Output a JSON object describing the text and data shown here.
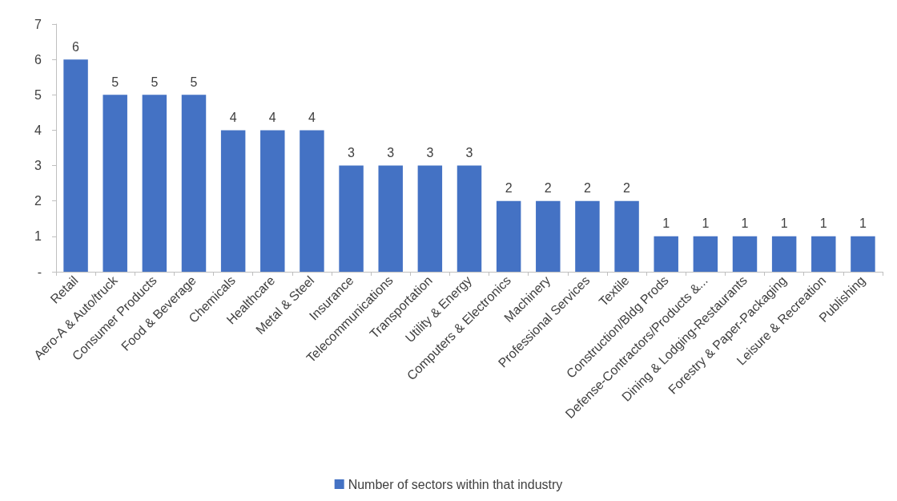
{
  "chart_data": {
    "type": "bar",
    "categories": [
      "Retail",
      "Aero-A & Auto/truck",
      "Consumer Products",
      "Food & Beverage",
      "Chemicals",
      "Healthcare",
      "Metal & Steel",
      "Insurance",
      "Telecommunications",
      "Transportation",
      "Utility & Energy",
      "Computers & Electronics",
      "Machinery",
      "Professional Services",
      "Textile",
      "Construction/Bldg Prods",
      "Defense-Contractors/Products &...",
      "Dining & Lodging-Restaurants",
      "Forestry & Paper-Packaging",
      "Leisure & Recreation",
      "Publishing"
    ],
    "series": [
      {
        "name": "Number of sectors within that industry",
        "color": "#4472c4",
        "values": [
          6,
          5,
          5,
          5,
          4,
          4,
          4,
          3,
          3,
          3,
          3,
          2,
          2,
          2,
          2,
          1,
          1,
          1,
          1,
          1,
          1
        ]
      }
    ],
    "ylim": [
      0,
      7
    ],
    "yticks": [
      {
        "value": 0,
        "label": "-"
      },
      1,
      2,
      3,
      4,
      5,
      6,
      7
    ],
    "grid": false,
    "legend": "bottom",
    "data_labels": true
  }
}
